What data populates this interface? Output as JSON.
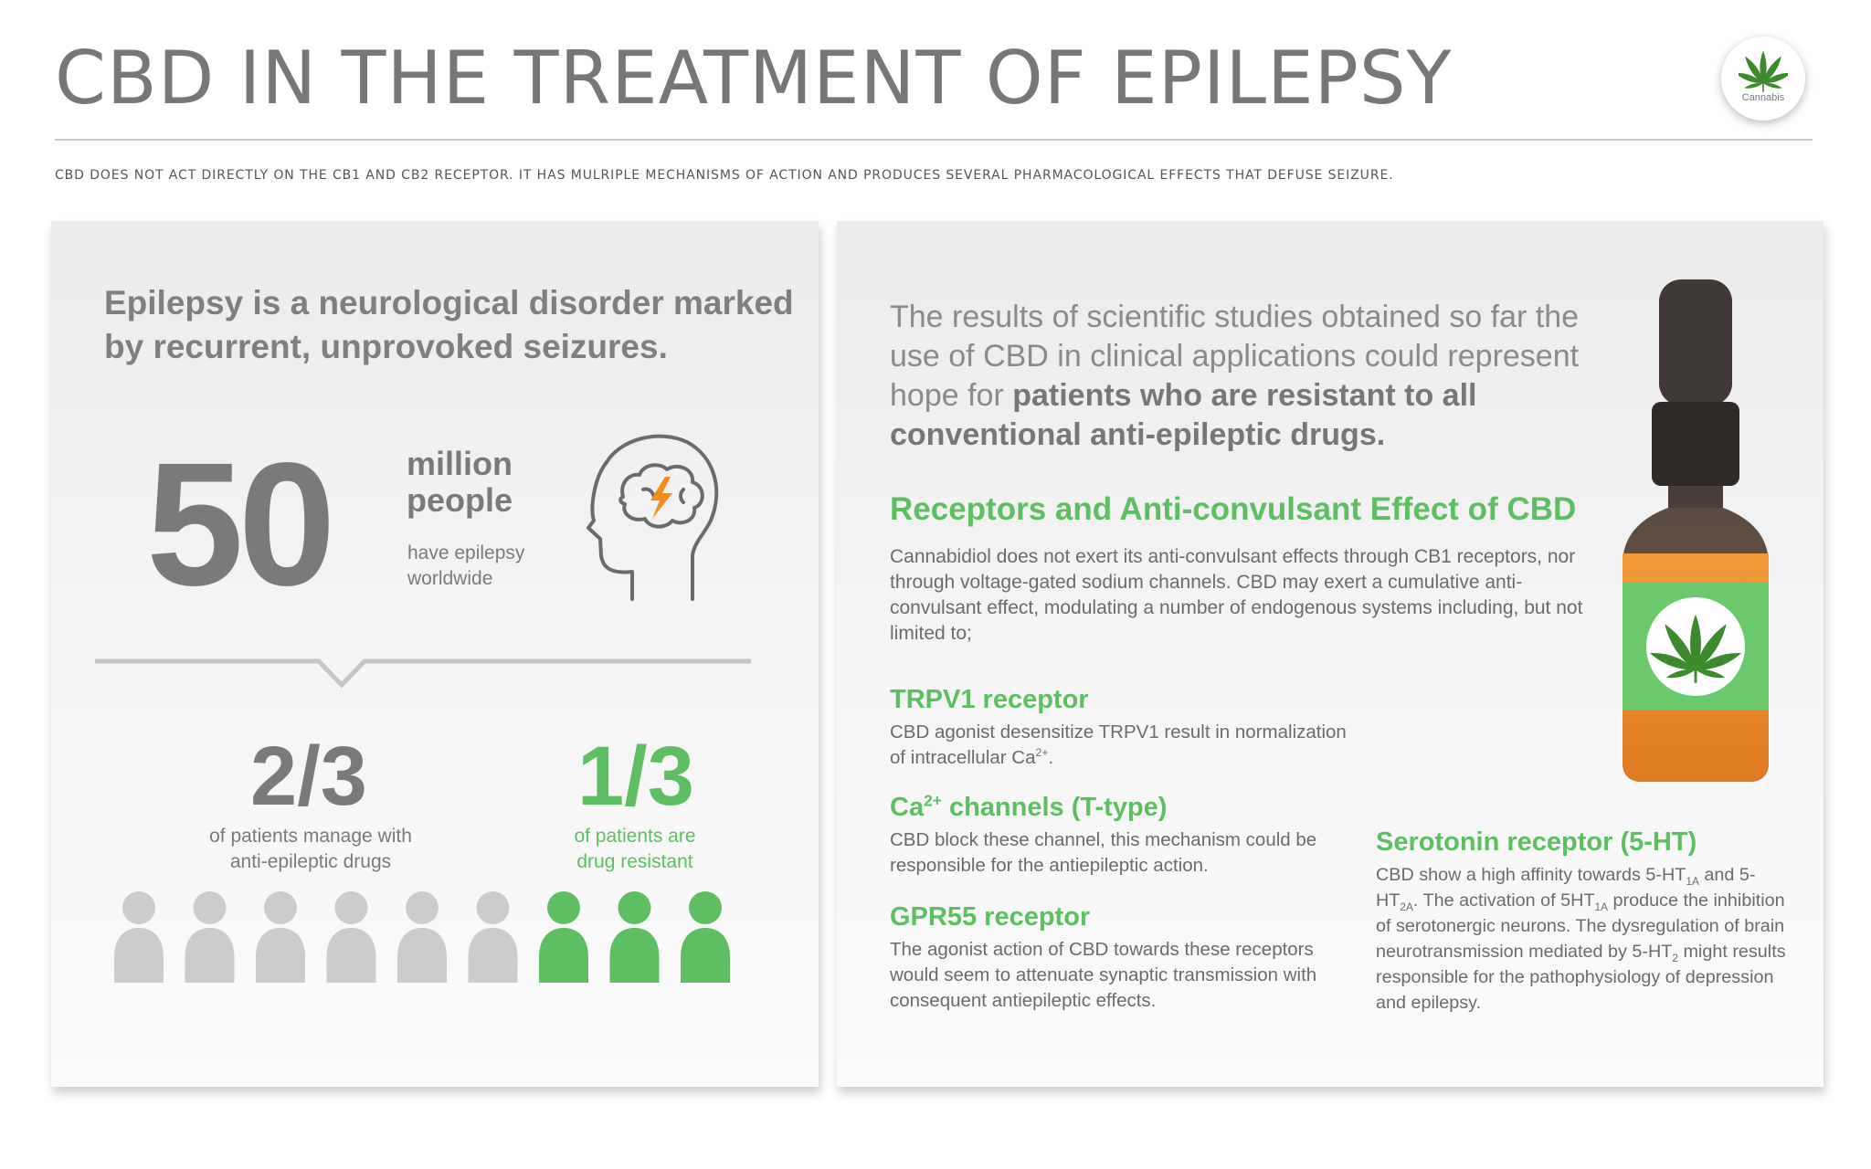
{
  "header": {
    "title": "CBD IN THE TREATMENT OF EPILEPSY",
    "logo_text": "Cannabis",
    "subtitle": "CBD DOES NOT ACT DIRECTLY ON THE CB1 AND CB2 RECEPTOR. IT HAS MULRIPLE MECHANISMS OF ACTION AND PRODUCES SEVERAL PHARMACOLOGICAL EFFECTS THAT DEFUSE SEIZURE."
  },
  "left": {
    "lead": "Epilepsy is a neurological disorder marked by recurrent, unprovoked seizures.",
    "big_number": "50",
    "million_line1": "million",
    "million_line2": "people",
    "worldwide_line1": "have epilepsy",
    "worldwide_line2": "worldwide",
    "fraction_managed": "2/3",
    "caption_managed_1": "of patients manage with",
    "caption_managed_2": "anti-epileptic drugs",
    "fraction_resistant": "1/3",
    "caption_resistant_1": "of patients are",
    "caption_resistant_2": "drug resistant",
    "people_total": 9,
    "people_resistant": 3
  },
  "right": {
    "intro_plain": "The results of scientific studies obtained so far the use of CBD in clinical applications could represent hope for ",
    "intro_bold": "patients who are resistant to all conventional anti-epileptic drugs.",
    "receptors_heading": "Receptors and Anti-convulsant Effect of CBD",
    "receptors_body": "Cannabidiol does not exert its anti-convulsant effects through CB1 receptors, nor through voltage-gated sodium channels. CBD may exert a cumulative anti-convulsant effect, modulating a number of endogenous systems including, but not limited to;",
    "trpv1_heading": "TRPV1 receptor",
    "trpv1_body": "CBD agonist desensitize TRPV1 result in normalization of intracellular Ca",
    "trpv1_sup": "2+",
    "trpv1_end": ".",
    "ca_heading_pre": "Ca",
    "ca_heading_sup": "2+",
    "ca_heading_post": " channels (T-type)",
    "ca_body": "CBD block these channel, this mechanism could be responsible for the antiepileptic action.",
    "gpr_heading": "GPR55 receptor",
    "gpr_body": "The agonist action of CBD towards these receptors would seem to attenuate synaptic transmission with consequent antiepileptic effects.",
    "sero_heading": "Serotonin receptor (5-HT)",
    "sero_1": "CBD show a high affinity towards 5-HT",
    "sero_sub1": "1A",
    "sero_2": " and 5-HT",
    "sero_sub2": "2A",
    "sero_3": ". The activation of 5HT",
    "sero_sub3": "1A",
    "sero_4": " produce the inhibition of serotonergic neurons. The dysregulation of brain neurotransmission mediated by 5-HT",
    "sero_sub4": "2",
    "sero_5": " might results responsible for the pathophysiology of depression and epilepsy."
  },
  "colors": {
    "accent_green": "#5dbf62",
    "text_gray": "#7a7a7a",
    "person_gray": "#cccccc",
    "bolt_orange": "#f28c1e",
    "bottle_orange": "#e8892c",
    "bottle_brown": "#4a3f38"
  },
  "icons": [
    "cannabis-leaf-icon",
    "head-lightning-icon",
    "person-icon",
    "dropper-bottle-icon"
  ]
}
